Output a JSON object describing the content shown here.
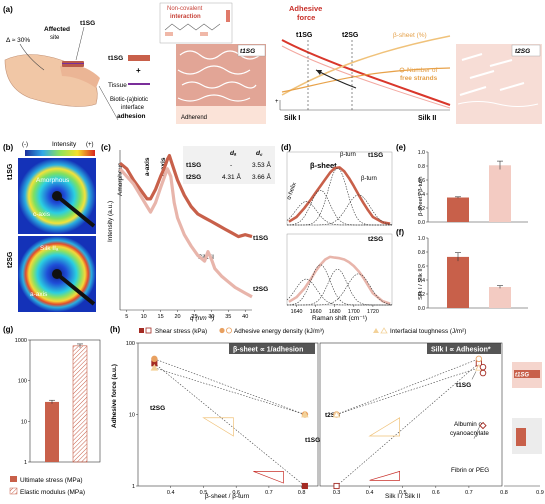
{
  "panel_labels": {
    "a": "(a)",
    "b": "(b)",
    "c": "(c)",
    "d": "(d)",
    "e": "(e)",
    "f": "(f)",
    "g": "(g)",
    "h": "(h)"
  },
  "panel_a": {
    "delta": "Δ ≈ 30%",
    "affected": "Affected",
    "site": "site",
    "t1_label": "t1SG",
    "legend_t1": "t1SG",
    "legend_tissue": "Tissue",
    "legend_plus": "+",
    "biotic_line1": "Biotic-(a)biotic",
    "biotic_line2": "interface",
    "biotic_line3": "adhesion",
    "noncov_line1": "Non-covalent",
    "noncov_line2": "interaction",
    "adherend": "Adherend",
    "box_t1": "t1SG",
    "box_t2": "t2SG",
    "adhesive_line1": "Adhesive",
    "adhesive_line2": "force",
    "beta_pct": "β-sheet (%)",
    "strands_line1": "Number of",
    "strands_line2": "free strands",
    "x_silk1": "Silk I",
    "x_silk2": "Silk II",
    "v_t1": "t1SG",
    "v_t2": "t2SG",
    "plus_sign": "+"
  },
  "panel_b": {
    "colorbar_minus": "(-)",
    "colorbar_label": "Intensity",
    "colorbar_plus": "(+)",
    "row1": "t1SG",
    "row2": "t2SG",
    "amorphous": "Amorphous",
    "c_axis": "c-axis",
    "silk2": "Silk IIₐ",
    "a_axis": "a-axis"
  },
  "panel_c": {
    "ylabel": "Intensity (a.u.)",
    "xlabel": "q (nm⁻¹)",
    "ann_amorphous": "Amorphous",
    "ann_aaxis": "a-axis",
    "ann_caxis": "c-axis",
    "ann_silk2": "Silk II",
    "series_t1": "t1SG",
    "series_t2": "t2SG",
    "table": {
      "col_da": "dₐ",
      "col_dc": "d꜀",
      "rows": [
        {
          "name": "t1SG",
          "da": "-",
          "dc": "3.53 Å"
        },
        {
          "name": "t2SG",
          "da": "4.31 Å",
          "dc": "3.66 Å"
        }
      ]
    }
  },
  "panel_d": {
    "t1": "t1SG",
    "t2": "t2SG",
    "alpha": "α-helix",
    "beta_sheet": "β-sheet",
    "beta_turn1": "β-turn",
    "beta_turn2": "β-turn",
    "xlabel": "Raman shift (cm⁻¹)"
  },
  "panel_e": {
    "ylabel": "β-sheet / β-turn"
  },
  "panel_f": {
    "ylabel": "Silk I / Silk II"
  },
  "panel_g": {
    "legend_ultimate": "Ultimate stress (MPa)",
    "legend_elastic": "Elastic modulus (MPa)"
  },
  "panel_h": {
    "legend_shear": "Shear stress (kPa)",
    "legend_energy": "Adhesive energy density (kJ/m³)",
    "legend_tough": "Interfacial toughness (J/m²)",
    "ylabel": "Adhesive force (a.u.)",
    "left_title": "β-sheet ∝ 1/adhesion",
    "right_title": "Silk I ∝ Adhesion*",
    "left_xlabel": "β-sheet / β-turn",
    "right_xlabel": "Silk I / Silk II",
    "t1": "t1SG",
    "t2": "t2SG",
    "ann_albumin1": "Albumin or",
    "ann_albumin2": "cyanoacrylate",
    "ann_fibrin": "Fibrin or PEG"
  },
  "chart_data": [
    {
      "id": "c",
      "type": "line",
      "title": "",
      "xlabel": "q (nm⁻¹)",
      "ylabel": "Intensity (a.u.)",
      "xlim": [
        3,
        42
      ],
      "x_ticks": [
        5,
        10,
        15,
        20,
        25,
        30,
        35,
        40
      ],
      "series": [
        {
          "name": "t1SG",
          "color": "#c8604a",
          "x": [
            3,
            5,
            7,
            9,
            11,
            12,
            13.5,
            15,
            16,
            17,
            17.6,
            18.5,
            20,
            22,
            24,
            26,
            28,
            30,
            32,
            34,
            36,
            38,
            40,
            42
          ],
          "y": [
            0.93,
            0.9,
            0.84,
            0.79,
            0.74,
            0.74,
            0.79,
            0.86,
            0.9,
            0.95,
            0.97,
            0.92,
            0.84,
            0.76,
            0.7,
            0.66,
            0.64,
            0.62,
            0.6,
            0.58,
            0.56,
            0.54,
            0.55,
            0.54
          ]
        },
        {
          "name": "t2SG",
          "color": "#e8b5ab",
          "x": [
            3,
            5,
            7,
            9,
            11,
            12,
            13.5,
            15,
            16,
            17,
            18,
            19,
            20,
            22,
            24,
            26,
            28,
            29,
            30,
            31,
            33,
            35,
            37,
            40,
            42
          ],
          "y": [
            0.9,
            0.86,
            0.82,
            0.76,
            0.7,
            0.67,
            0.72,
            0.8,
            0.85,
            0.9,
            0.86,
            0.72,
            0.64,
            0.55,
            0.49,
            0.44,
            0.41,
            0.46,
            0.42,
            0.37,
            0.33,
            0.3,
            0.27,
            0.24,
            0.22
          ]
        }
      ]
    },
    {
      "id": "d",
      "type": "line",
      "title": "",
      "xlabel": "Raman shift (cm⁻¹)",
      "xlim": [
        1630,
        1740
      ],
      "x_ticks": [
        1640,
        1660,
        1680,
        1700,
        1720
      ],
      "series": [
        {
          "name": "t1SG",
          "color": "#c8604a",
          "sub": "top",
          "x": [
            1632,
            1640,
            1648,
            1655,
            1660,
            1665,
            1670,
            1675,
            1680,
            1685,
            1690,
            1695,
            1700,
            1705,
            1710,
            1715,
            1720,
            1730,
            1738
          ],
          "y": [
            0.05,
            0.12,
            0.25,
            0.38,
            0.48,
            0.58,
            0.68,
            0.78,
            0.85,
            0.86,
            0.8,
            0.7,
            0.58,
            0.45,
            0.33,
            0.22,
            0.12,
            0.04,
            0.02
          ]
        },
        {
          "name": "t2SG",
          "color": "#e8b5ab",
          "sub": "bottom",
          "x": [
            1632,
            1640,
            1648,
            1655,
            1660,
            1665,
            1670,
            1675,
            1680,
            1685,
            1690,
            1695,
            1700,
            1705,
            1710,
            1715,
            1720,
            1730,
            1738
          ],
          "y": [
            0.05,
            0.12,
            0.25,
            0.4,
            0.52,
            0.62,
            0.7,
            0.74,
            0.73,
            0.72,
            0.7,
            0.66,
            0.6,
            0.52,
            0.42,
            0.3,
            0.18,
            0.06,
            0.02
          ]
        }
      ],
      "components": {
        "top": [
          {
            "c": 1650,
            "w": 11,
            "h": 0.35
          },
          {
            "c": 1665,
            "w": 10,
            "h": 0.52
          },
          {
            "c": 1683,
            "w": 10,
            "h": 0.85
          },
          {
            "c": 1705,
            "w": 12,
            "h": 0.45
          }
        ],
        "bottom": [
          {
            "c": 1650,
            "w": 11,
            "h": 0.4
          },
          {
            "c": 1665,
            "w": 10,
            "h": 0.62
          },
          {
            "c": 1683,
            "w": 10,
            "h": 0.55
          },
          {
            "c": 1705,
            "w": 12,
            "h": 0.48
          }
        ]
      }
    },
    {
      "id": "e",
      "type": "bar",
      "ylabel": "β-sheet / β-turn",
      "ylim": [
        0,
        1.0
      ],
      "y_ticks": [
        0,
        0.2,
        0.4,
        0.6,
        0.8,
        1.0
      ],
      "categories": [
        "t1SG",
        "t2SG"
      ],
      "values": [
        0.35,
        0.81
      ],
      "errors": [
        0.01,
        0.06
      ],
      "colors": [
        "#c8604a",
        "#f3cbc2"
      ]
    },
    {
      "id": "f",
      "type": "bar",
      "ylabel": "Silk I / Silk II",
      "ylim": [
        0,
        1.0
      ],
      "y_ticks": [
        0,
        0.2,
        0.4,
        0.6,
        0.8,
        1.0
      ],
      "categories": [
        "t1SG",
        "t2SG"
      ],
      "values": [
        0.73,
        0.3
      ],
      "errors": [
        0.06,
        0.02
      ],
      "colors": [
        "#c8604a",
        "#f3cbc2"
      ]
    },
    {
      "id": "g",
      "type": "bar",
      "yscale": "log",
      "ylim": [
        1,
        1000
      ],
      "y_ticks": [
        1,
        10,
        100,
        1000
      ],
      "series": [
        {
          "name": "Ultimate stress (MPa)",
          "value": 30,
          "error": 3,
          "color": "#c8604a",
          "hatched": false
        },
        {
          "name": "Elastic modulus (MPa)",
          "value": 720,
          "error": 80,
          "color": "#ffffff",
          "hatched": true
        }
      ]
    },
    {
      "id": "h",
      "type": "scatter",
      "yscale": "log",
      "ylim": [
        1,
        100
      ],
      "ylabel": "Adhesive force (a.u.)",
      "panels": [
        {
          "xlabel": "β-sheet / β-turn",
          "xlim": [
            0.3,
            0.85
          ],
          "x_ticks": [
            0.4,
            0.5,
            0.6,
            0.7,
            0.8
          ],
          "series": [
            {
              "name": "Shear stress (kPa)",
              "marker": "square",
              "filled": true,
              "color": "#a42b23",
              "x": [
                0.35,
                0.81
              ],
              "y": [
                52,
                1
              ]
            },
            {
              "name": "Adhesive energy density (kJ/m³)",
              "marker": "circle",
              "filled": true,
              "color": "#e8a060",
              "x": [
                0.35,
                0.81
              ],
              "y": [
                60,
                10
              ]
            },
            {
              "name": "Interfacial toughness (J/m²)",
              "marker": "triangle",
              "filled": true,
              "color": "#f3d29a",
              "x": [
                0.35,
                0.81
              ],
              "y": [
                45,
                10
              ]
            }
          ]
        },
        {
          "xlabel": "Silk I / Silk II",
          "xlim": [
            0.25,
            0.8
          ],
          "x_ticks": [
            0.3,
            0.4,
            0.5,
            0.6,
            0.7
          ],
          "series": [
            {
              "name": "Shear stress (kPa)",
              "marker": "square",
              "filled": false,
              "color": "#a42b23",
              "x": [
                0.3,
                0.73
              ],
              "y": [
                1,
                52
              ]
            },
            {
              "name": "Adhesive energy density (kJ/m³)",
              "marker": "circle",
              "filled": false,
              "color": "#e8a060",
              "x": [
                0.3,
                0.73
              ],
              "y": [
                10,
                60
              ]
            },
            {
              "name": "Interfacial toughness (J/m²)",
              "marker": "triangle",
              "filled": false,
              "color": "#f3d29a",
              "x": [
                0.3,
                0.73
              ],
              "y": [
                10,
                45
              ]
            }
          ]
        }
      ],
      "extra_points": [
        {
          "label": "Albumin or cyanoacrylate",
          "marker": "circle",
          "y": [
            38,
            46
          ]
        },
        {
          "label": "Fibrin or PEG",
          "marker": "diamond",
          "y": [
            7
          ]
        }
      ],
      "side_axis": {
        "xlim": [
          0.8,
          0.9
        ],
        "x_ticks": [
          0.8,
          0.9
        ]
      }
    }
  ]
}
